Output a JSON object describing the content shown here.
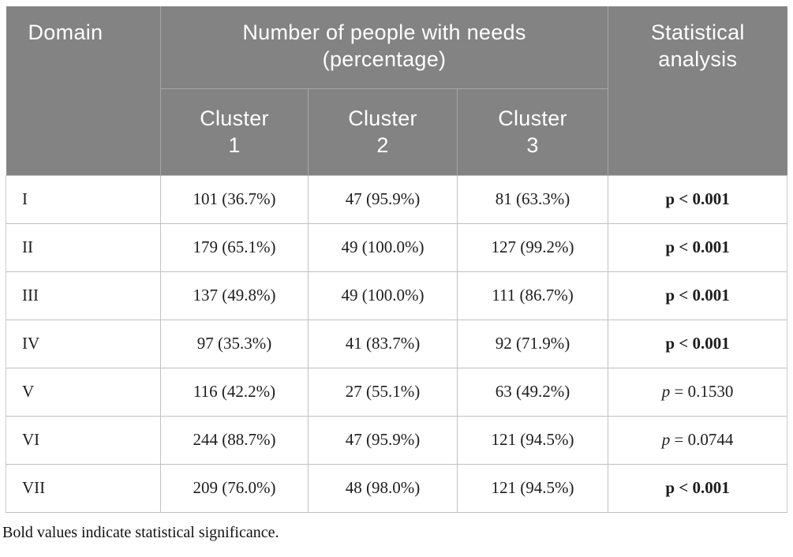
{
  "table": {
    "header": {
      "domain": "Domain",
      "group": "Number of people with needs (percentage)",
      "statistical": "Statistical analysis",
      "clusters": [
        "Cluster 1",
        "Cluster 2",
        "Cluster 3"
      ]
    },
    "rows": [
      {
        "domain": "I",
        "cluster1": "101 (36.7%)",
        "cluster2": "47 (95.9%)",
        "cluster3": "81 (63.3%)",
        "statistical": "p < 0.001",
        "significant": true
      },
      {
        "domain": "II",
        "cluster1": "179 (65.1%)",
        "cluster2": "49 (100.0%)",
        "cluster3": "127 (99.2%)",
        "statistical": "p < 0.001",
        "significant": true
      },
      {
        "domain": "III",
        "cluster1": "137 (49.8%)",
        "cluster2": "49 (100.0%)",
        "cluster3": "111 (86.7%)",
        "statistical": "p < 0.001",
        "significant": true
      },
      {
        "domain": "IV",
        "cluster1": "97 (35.3%)",
        "cluster2": "41 (83.7%)",
        "cluster3": "92 (71.9%)",
        "statistical": "p < 0.001",
        "significant": true
      },
      {
        "domain": "V",
        "cluster1": "116 (42.2%)",
        "cluster2": "27 (55.1%)",
        "cluster3": "63 (49.2%)",
        "statistical": "p = 0.1530",
        "significant": false
      },
      {
        "domain": "VI",
        "cluster1": "244 (88.7%)",
        "cluster2": "47 (95.9%)",
        "cluster3": "121 (94.5%)",
        "statistical": "p = 0.0744",
        "significant": false
      },
      {
        "domain": "VII",
        "cluster1": "209 (76.0%)",
        "cluster2": "48 (98.0%)",
        "cluster3": "121 (94.5%)",
        "statistical": "p < 0.001",
        "significant": true
      }
    ],
    "footnote": "Bold values indicate statistical significance.",
    "colors": {
      "header_bg": "#838383",
      "header_text": "#ffffff",
      "header_divider": "#a6a6a6",
      "body_border": "#c0c0c0",
      "body_text": "#1d1d1d"
    }
  }
}
